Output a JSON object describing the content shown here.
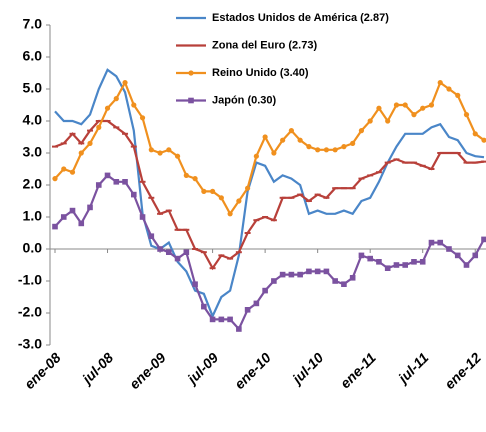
{
  "chart_data": {
    "type": "line",
    "categories": [
      "ene-08",
      null,
      null,
      null,
      null,
      null,
      "jul-08",
      null,
      null,
      null,
      null,
      null,
      "ene-09",
      null,
      null,
      null,
      null,
      null,
      "jul-09",
      null,
      null,
      null,
      null,
      null,
      "ene-10",
      null,
      null,
      null,
      null,
      null,
      "jul-10",
      null,
      null,
      null,
      null,
      null,
      "ene-11",
      null,
      null,
      null,
      null,
      null,
      "jul-11",
      null,
      null,
      null,
      null,
      null,
      "ene-12",
      null
    ],
    "series": [
      {
        "name": "Estados Unidos de América (2.87)",
        "color": "#4a86c8",
        "marker": "none",
        "values": [
          4.3,
          4.0,
          4.0,
          3.9,
          4.2,
          5.0,
          5.6,
          5.4,
          4.9,
          3.7,
          1.1,
          0.1,
          0.0,
          0.2,
          -0.4,
          -0.7,
          -1.3,
          -1.4,
          -2.1,
          -1.5,
          -1.3,
          -0.2,
          1.8,
          2.7,
          2.6,
          2.1,
          2.3,
          2.2,
          2.0,
          1.1,
          1.2,
          1.1,
          1.1,
          1.2,
          1.1,
          1.5,
          1.6,
          2.1,
          2.7,
          3.2,
          3.6,
          3.6,
          3.6,
          3.8,
          3.9,
          3.5,
          3.4,
          3.0,
          2.9,
          2.87
        ]
      },
      {
        "name": "Zona del Euro (2.73)",
        "color": "#b8403a",
        "marker": "dash",
        "values": [
          3.2,
          3.3,
          3.6,
          3.3,
          3.7,
          4.0,
          4.0,
          3.8,
          3.6,
          3.2,
          2.1,
          1.6,
          1.1,
          1.2,
          0.6,
          0.6,
          0.0,
          -0.1,
          -0.6,
          -0.2,
          -0.3,
          -0.1,
          0.5,
          0.9,
          1.0,
          0.9,
          1.6,
          1.6,
          1.7,
          1.5,
          1.7,
          1.6,
          1.9,
          1.9,
          1.9,
          2.2,
          2.3,
          2.4,
          2.7,
          2.8,
          2.7,
          2.7,
          2.6,
          2.5,
          3.0,
          3.0,
          3.0,
          2.7,
          2.7,
          2.73
        ]
      },
      {
        "name": "Reino Unido (3.40)",
        "color": "#f0901e",
        "marker": "circle",
        "values": [
          2.2,
          2.5,
          2.4,
          3.0,
          3.3,
          3.8,
          4.4,
          4.7,
          5.2,
          4.5,
          4.1,
          3.1,
          3.0,
          3.1,
          2.9,
          2.3,
          2.2,
          1.8,
          1.8,
          1.6,
          1.1,
          1.5,
          1.9,
          2.9,
          3.5,
          3.0,
          3.4,
          3.7,
          3.4,
          3.2,
          3.1,
          3.1,
          3.1,
          3.2,
          3.3,
          3.7,
          4.0,
          4.4,
          4.0,
          4.5,
          4.5,
          4.2,
          4.4,
          4.5,
          5.2,
          5.0,
          4.8,
          4.2,
          3.6,
          3.4
        ]
      },
      {
        "name": "Japón (0.30)",
        "color": "#7b52a0",
        "marker": "square",
        "values": [
          0.7,
          1.0,
          1.2,
          0.8,
          1.3,
          2.0,
          2.3,
          2.1,
          2.1,
          1.7,
          1.0,
          0.4,
          0.0,
          -0.1,
          -0.3,
          -0.1,
          -1.1,
          -1.8,
          -2.2,
          -2.2,
          -2.2,
          -2.5,
          -1.9,
          -1.7,
          -1.3,
          -1.0,
          -0.8,
          -0.8,
          -0.8,
          -0.7,
          -0.7,
          -0.7,
          -1.0,
          -1.1,
          -0.9,
          -0.2,
          -0.3,
          -0.4,
          -0.6,
          -0.5,
          -0.5,
          -0.4,
          -0.4,
          0.2,
          0.2,
          0.0,
          -0.2,
          -0.5,
          -0.2,
          0.3
        ]
      }
    ],
    "ylim": [
      -3,
      7
    ],
    "yticks": [
      {
        "value": -3,
        "label": "-3.0"
      },
      {
        "value": -2,
        "label": "-2.0"
      },
      {
        "value": -1,
        "label": "-1.0"
      },
      {
        "value": 0,
        "label": "0.0"
      },
      {
        "value": 1,
        "label": "1.0"
      },
      {
        "value": 2,
        "label": "2.0"
      },
      {
        "value": 3,
        "label": "3.0"
      },
      {
        "value": 4,
        "label": "4.0"
      },
      {
        "value": 5,
        "label": "5.0"
      },
      {
        "value": 6,
        "label": "6.0"
      },
      {
        "value": 7,
        "label": "7.0"
      }
    ],
    "grid": false,
    "legend": "top"
  }
}
